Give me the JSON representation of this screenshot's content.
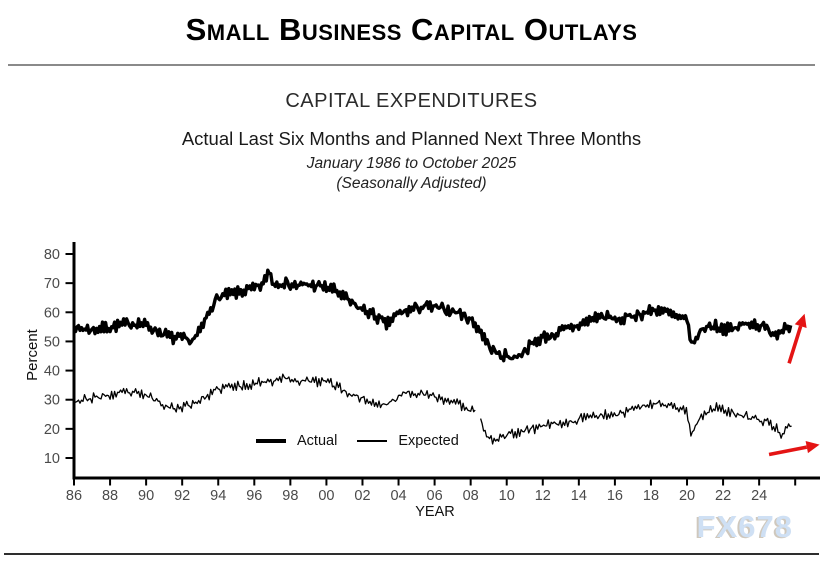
{
  "page": {
    "title": "Small Business Capital Outlays",
    "watermark": "FX678"
  },
  "header": {
    "chart_title": "CAPITAL EXPENDITURES",
    "subtitle": "Actual Last Six Months and Planned Next Three Months",
    "date_range": "January 1986 to October 2025",
    "note": "(Seasonally Adjusted)"
  },
  "chart_data": {
    "type": "line",
    "title": "CAPITAL EXPENDITURES",
    "xlabel": "YEAR",
    "ylabel": "Percent",
    "x_range": [
      1986,
      2025.83
    ],
    "ylim": [
      5,
      83
    ],
    "y_ticks": [
      10,
      20,
      30,
      40,
      50,
      60,
      70,
      80
    ],
    "x_ticks": [
      {
        "v": 1986,
        "label": "86"
      },
      {
        "v": 1988,
        "label": "88"
      },
      {
        "v": 1990,
        "label": "90"
      },
      {
        "v": 1992,
        "label": "92"
      },
      {
        "v": 1994,
        "label": "94"
      },
      {
        "v": 1996,
        "label": "96"
      },
      {
        "v": 1998,
        "label": "98"
      },
      {
        "v": 2000,
        "label": "00"
      },
      {
        "v": 2002,
        "label": "02"
      },
      {
        "v": 2004,
        "label": "04"
      },
      {
        "v": 2006,
        "label": "06"
      },
      {
        "v": 2008,
        "label": "08"
      },
      {
        "v": 2010,
        "label": "10"
      },
      {
        "v": 2012,
        "label": "12"
      },
      {
        "v": 2014,
        "label": "14"
      },
      {
        "v": 2016,
        "label": "16"
      },
      {
        "v": 2018,
        "label": "18"
      },
      {
        "v": 2020,
        "label": "20"
      },
      {
        "v": 2022,
        "label": "22"
      },
      {
        "v": 2024,
        "label": "24"
      },
      {
        "v": 2026,
        "label": ""
      }
    ],
    "grid": false,
    "legend_position": "inside-bottom-left",
    "legend": [
      {
        "label": "Actual",
        "style": "thick"
      },
      {
        "label": "Expected",
        "style": "thin"
      }
    ],
    "line_color": "#000000",
    "tick_label_color": "#4a4a4a",
    "annotation_color": "#e41414",
    "frequency": "monthly",
    "series": [
      {
        "name": "Actual",
        "stroke_width": 3.4,
        "noise": 1.5,
        "seed": 7,
        "segments": [
          [
            [
              1986.0,
              54
            ],
            [
              1986.5,
              54.5
            ],
            [
              1987.0,
              54
            ],
            [
              1987.5,
              54.5
            ],
            [
              1988.0,
              55
            ],
            [
              1988.5,
              55.5
            ],
            [
              1989.0,
              56
            ],
            [
              1989.5,
              56.5
            ],
            [
              1990.0,
              55.5
            ],
            [
              1990.5,
              54
            ],
            [
              1991.0,
              52.5
            ],
            [
              1991.5,
              51
            ],
            [
              1992.0,
              51
            ],
            [
              1992.4,
              50
            ],
            [
              1992.8,
              51.5
            ],
            [
              1993.2,
              56
            ],
            [
              1993.6,
              62
            ],
            [
              1994.0,
              65
            ],
            [
              1994.5,
              66
            ],
            [
              1995.0,
              66.5
            ],
            [
              1995.5,
              67.5
            ],
            [
              1996.0,
              68
            ],
            [
              1996.5,
              69.5
            ],
            [
              1996.8,
              74.5
            ],
            [
              1997.1,
              69.5
            ],
            [
              1997.5,
              70.5
            ],
            [
              1998.0,
              69.5
            ],
            [
              1998.5,
              69
            ],
            [
              1999.0,
              69.5
            ],
            [
              1999.5,
              69
            ],
            [
              2000.0,
              68.5
            ],
            [
              2000.5,
              67.5
            ],
            [
              2001.0,
              65
            ],
            [
              2001.5,
              62.5
            ],
            [
              2002.0,
              61
            ],
            [
              2002.5,
              59.5
            ],
            [
              2003.0,
              57.5
            ],
            [
              2003.3,
              55.5
            ],
            [
              2003.7,
              58
            ],
            [
              2004.0,
              59.5
            ],
            [
              2004.5,
              60.5
            ],
            [
              2005.0,
              61.5
            ],
            [
              2005.5,
              62
            ],
            [
              2006.0,
              61.5
            ],
            [
              2006.5,
              61
            ],
            [
              2007.0,
              60.5
            ],
            [
              2007.5,
              59.5
            ],
            [
              2008.0,
              57.5
            ],
            [
              2008.5,
              54
            ],
            [
              2009.0,
              48.5
            ],
            [
              2009.5,
              45.5
            ],
            [
              2010.0,
              45
            ],
            [
              2010.5,
              44.5
            ],
            [
              2011.0,
              47
            ],
            [
              2011.5,
              49.5
            ],
            [
              2012.0,
              51.5
            ],
            [
              2012.5,
              52
            ],
            [
              2013.0,
              53.5
            ],
            [
              2013.5,
              54.5
            ],
            [
              2014.0,
              55.5
            ],
            [
              2014.5,
              57
            ],
            [
              2015.0,
              58.5
            ],
            [
              2015.5,
              58.5
            ],
            [
              2016.0,
              57.5
            ],
            [
              2016.5,
              57.5
            ],
            [
              2017.0,
              59
            ],
            [
              2017.5,
              59.5
            ],
            [
              2018.0,
              60.5
            ],
            [
              2018.5,
              61
            ],
            [
              2019.0,
              59.5
            ],
            [
              2019.5,
              58
            ],
            [
              2020.0,
              57
            ],
            [
              2020.3,
              48.5
            ],
            [
              2020.7,
              53
            ],
            [
              2021.0,
              55
            ],
            [
              2021.5,
              55.5
            ],
            [
              2022.0,
              54.5
            ],
            [
              2022.5,
              54
            ],
            [
              2023.0,
              55.5
            ],
            [
              2023.5,
              56.5
            ],
            [
              2024.0,
              55.5
            ],
            [
              2024.5,
              54
            ],
            [
              2025.0,
              52.5
            ],
            [
              2025.3,
              55
            ],
            [
              2025.83,
              55.5
            ]
          ]
        ]
      },
      {
        "name": "Expected",
        "stroke_width": 1.3,
        "noise": 1.2,
        "seed": 23,
        "segments": [
          [
            [
              1986.0,
              29.5
            ],
            [
              1986.5,
              30
            ],
            [
              1987.0,
              30.5
            ],
            [
              1987.5,
              31
            ],
            [
              1988.0,
              31.5
            ],
            [
              1988.5,
              32
            ],
            [
              1989.0,
              32.5
            ],
            [
              1989.5,
              32
            ],
            [
              1990.0,
              31.5
            ],
            [
              1990.5,
              30
            ],
            [
              1991.0,
              28.5
            ],
            [
              1991.5,
              27
            ],
            [
              1992.0,
              27.5
            ],
            [
              1992.5,
              28.5
            ],
            [
              1993.0,
              30
            ],
            [
              1993.5,
              31.5
            ],
            [
              1994.0,
              33.5
            ],
            [
              1994.5,
              34.5
            ],
            [
              1995.0,
              34.5
            ],
            [
              1995.5,
              35
            ],
            [
              1996.0,
              35.5
            ],
            [
              1996.5,
              36.5
            ],
            [
              1997.0,
              36.5
            ],
            [
              1997.5,
              37.5
            ],
            [
              1998.0,
              37
            ],
            [
              1998.5,
              36.5
            ],
            [
              1999.0,
              36.5
            ],
            [
              1999.5,
              36
            ],
            [
              2000.0,
              36.5
            ],
            [
              2000.5,
              35
            ],
            [
              2001.0,
              33
            ],
            [
              2001.5,
              31.5
            ],
            [
              2002.0,
              30.5
            ],
            [
              2002.5,
              29
            ],
            [
              2003.0,
              28
            ],
            [
              2003.5,
              29
            ],
            [
              2004.0,
              31
            ],
            [
              2004.5,
              32.5
            ],
            [
              2005.0,
              32.5
            ],
            [
              2005.5,
              31.5
            ],
            [
              2006.0,
              31
            ],
            [
              2006.5,
              30
            ],
            [
              2007.0,
              29.5
            ],
            [
              2007.5,
              28
            ],
            [
              2008.0,
              26.5
            ],
            [
              2008.3,
              26.5
            ]
          ],
          [
            [
              2008.55,
              23.5
            ],
            [
              2008.8,
              18.5
            ],
            [
              2009.1,
              16
            ],
            [
              2009.5,
              17
            ],
            [
              2010.0,
              18
            ],
            [
              2010.5,
              18.5
            ],
            [
              2011.0,
              19.5
            ],
            [
              2011.5,
              20
            ],
            [
              2012.0,
              21
            ],
            [
              2012.5,
              21.5
            ],
            [
              2013.0,
              22
            ],
            [
              2013.5,
              22.5
            ],
            [
              2014.0,
              23.5
            ],
            [
              2014.5,
              24
            ],
            [
              2015.0,
              24.5
            ],
            [
              2015.5,
              25
            ],
            [
              2016.0,
              25
            ],
            [
              2016.5,
              25.5
            ],
            [
              2017.0,
              26.5
            ],
            [
              2017.5,
              27.5
            ],
            [
              2018.0,
              28.5
            ],
            [
              2018.5,
              29
            ],
            [
              2019.0,
              28
            ],
            [
              2019.5,
              27.5
            ],
            [
              2020.0,
              25.5
            ],
            [
              2020.2,
              17.5
            ],
            [
              2020.6,
              22.5
            ],
            [
              2021.0,
              25.5
            ],
            [
              2021.5,
              27.5
            ],
            [
              2022.0,
              26.5
            ],
            [
              2022.5,
              25.5
            ],
            [
              2023.0,
              24.5
            ],
            [
              2023.5,
              24
            ],
            [
              2024.0,
              23
            ],
            [
              2024.5,
              22
            ],
            [
              2025.0,
              20.5
            ],
            [
              2025.25,
              17.5
            ],
            [
              2025.55,
              21.5
            ],
            [
              2025.83,
              21
            ]
          ]
        ]
      }
    ],
    "annotations": [
      {
        "name": "actual-trend-arrow",
        "from": [
          2025.66,
          42.5
        ],
        "to": [
          2026.52,
          59.5
        ]
      },
      {
        "name": "expected-trend-arrow",
        "from": [
          2024.55,
          11.2
        ],
        "to": [
          2027.35,
          14.6
        ]
      }
    ]
  }
}
